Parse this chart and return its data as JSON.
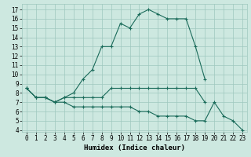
{
  "xlabel": "Humidex (Indice chaleur)",
  "background_color": "#cde8e0",
  "grid_color": "#9ec8be",
  "line_color": "#1a6b5a",
  "xlim": [
    -0.5,
    23.5
  ],
  "ylim": [
    3.8,
    17.6
  ],
  "xticks": [
    0,
    1,
    2,
    3,
    4,
    5,
    6,
    7,
    8,
    9,
    10,
    11,
    12,
    13,
    14,
    15,
    16,
    17,
    18,
    19,
    20,
    21,
    22,
    23
  ],
  "yticks": [
    4,
    5,
    6,
    7,
    8,
    9,
    10,
    11,
    12,
    13,
    14,
    15,
    16,
    17
  ],
  "line1_x": [
    0,
    1,
    2,
    3,
    4,
    5,
    6,
    7,
    8,
    9,
    10,
    11,
    12,
    13,
    14,
    15,
    16,
    17,
    18,
    19
  ],
  "line1_y": [
    8.5,
    7.5,
    7.5,
    7.0,
    7.5,
    8.0,
    9.5,
    10.5,
    13.0,
    13.0,
    15.5,
    15.0,
    16.5,
    17.0,
    16.5,
    16.0,
    16.0,
    16.0,
    13.0,
    9.5
  ],
  "line2_x": [
    0,
    1,
    2,
    3,
    4,
    5,
    6,
    7,
    8,
    9,
    10,
    11,
    12,
    13,
    14,
    15,
    16,
    17,
    18,
    19
  ],
  "line2_y": [
    8.5,
    7.5,
    7.5,
    7.0,
    7.5,
    7.5,
    7.5,
    7.5,
    7.5,
    8.5,
    8.5,
    8.5,
    8.5,
    8.5,
    8.5,
    8.5,
    8.5,
    8.5,
    8.5,
    7.0
  ],
  "line3_x": [
    0,
    1,
    2,
    3,
    4,
    5,
    6,
    7,
    8,
    9,
    10,
    11,
    12,
    13,
    14,
    15,
    16,
    17,
    18,
    19,
    20,
    21,
    22,
    23
  ],
  "line3_y": [
    8.5,
    7.5,
    7.5,
    7.0,
    7.0,
    6.5,
    6.5,
    6.5,
    6.5,
    6.5,
    6.5,
    6.5,
    6.0,
    6.0,
    5.5,
    5.5,
    5.5,
    5.5,
    5.0,
    5.0,
    7.0,
    5.5,
    5.0,
    4.0
  ],
  "tick_fontsize": 5.5,
  "xlabel_fontsize": 6.5
}
